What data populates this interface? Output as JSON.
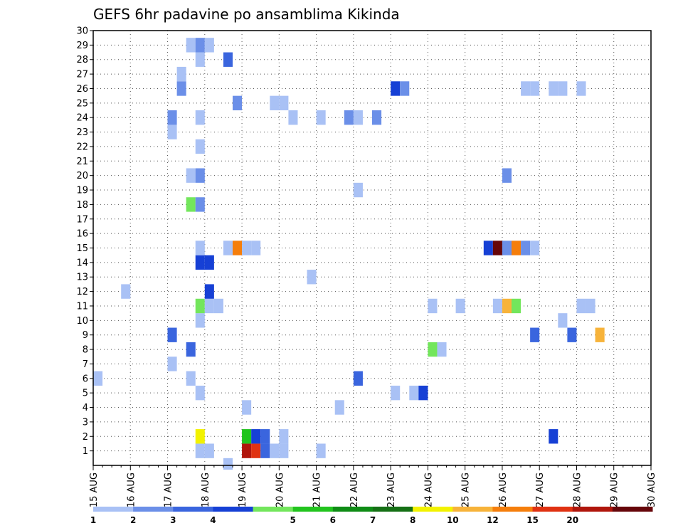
{
  "chart_data": {
    "type": "heatmap",
    "title": "GEFS 6hr padavine po ansamblima Kikinda",
    "xlabel": "",
    "ylabel": "",
    "x_tick_labels": [
      "15 AUG",
      "16 AUG",
      "17 AUG",
      "18 AUG",
      "19 AUG",
      "20 AUG",
      "21 AUG",
      "22 AUG",
      "23 AUG",
      "24 AUG",
      "25 AUG",
      "26 AUG",
      "27 AUG",
      "28 AUG",
      "29 AUG",
      "30 AUG"
    ],
    "y_tick_labels": [
      "1",
      "2",
      "3",
      "4",
      "5",
      "6",
      "7",
      "8",
      "9",
      "10",
      "11",
      "12",
      "13",
      "14",
      "15",
      "16",
      "17",
      "18",
      "19",
      "20",
      "21",
      "22",
      "23",
      "24",
      "25",
      "26",
      "27",
      "28",
      "29",
      "30"
    ],
    "xlim": [
      "15 AUG 00Z",
      "30 AUG 00Z"
    ],
    "ylim": [
      0,
      30
    ],
    "grid": true,
    "x_unit": "6-hour steps from 15 AUG 00Z (4 steps per day)",
    "colorbar": {
      "labels": [
        "1",
        "2",
        "3",
        "4",
        "5",
        "6",
        "7",
        "8",
        "10",
        "12",
        "15",
        "20"
      ],
      "colors": [
        "#a9c1f5",
        "#6b8fe8",
        "#3a65de",
        "#1640d5",
        "#73e65c",
        "#22c41e",
        "#0f8c15",
        "#157015",
        "#f2f200",
        "#f7b33a",
        "#f57e0c",
        "#e03212",
        "#b0160c",
        "#66060a"
      ]
    },
    "cells": [
      {
        "member": 1,
        "step": 11,
        "level": 1
      },
      {
        "member": 1,
        "step": 12,
        "level": 1
      },
      {
        "member": 1,
        "step": 16,
        "level": 13
      },
      {
        "member": 1,
        "step": 17,
        "level": 12
      },
      {
        "member": 1,
        "step": 18,
        "level": 3
      },
      {
        "member": 1,
        "step": 19,
        "level": 1
      },
      {
        "member": 1,
        "step": 20,
        "level": 1
      },
      {
        "member": 1,
        "step": 24,
        "level": 1
      },
      {
        "member": 2,
        "step": 11,
        "level": 9
      },
      {
        "member": 2,
        "step": 16,
        "level": 6
      },
      {
        "member": 2,
        "step": 17,
        "level": 4
      },
      {
        "member": 2,
        "step": 18,
        "level": 3
      },
      {
        "member": 2,
        "step": 20,
        "level": 1
      },
      {
        "member": 2,
        "step": 49,
        "level": 4
      },
      {
        "member": 4,
        "step": 16,
        "level": 1
      },
      {
        "member": 4,
        "step": 26,
        "level": 1
      },
      {
        "member": 5,
        "step": 11,
        "level": 1
      },
      {
        "member": 5,
        "step": 32,
        "level": 1
      },
      {
        "member": 5,
        "step": 34,
        "level": 1
      },
      {
        "member": 5,
        "step": 35,
        "level": 4
      },
      {
        "member": 6,
        "step": 0,
        "level": 1
      },
      {
        "member": 6,
        "step": 10,
        "level": 1
      },
      {
        "member": 6,
        "step": 28,
        "level": 3
      },
      {
        "member": 7,
        "step": 8,
        "level": 1
      },
      {
        "member": 8,
        "step": 10,
        "level": 3
      },
      {
        "member": 8,
        "step": 36,
        "level": 5
      },
      {
        "member": 8,
        "step": 37,
        "level": 1
      },
      {
        "member": 9,
        "step": 8,
        "level": 3
      },
      {
        "member": 9,
        "step": 47,
        "level": 3
      },
      {
        "member": 9,
        "step": 51,
        "level": 3
      },
      {
        "member": 9,
        "step": 54,
        "level": 10
      },
      {
        "member": 10,
        "step": 11,
        "level": 1
      },
      {
        "member": 10,
        "step": 50,
        "level": 1
      },
      {
        "member": 11,
        "step": 11,
        "level": 5
      },
      {
        "member": 11,
        "step": 12,
        "level": 1
      },
      {
        "member": 11,
        "step": 13,
        "level": 1
      },
      {
        "member": 11,
        "step": 36,
        "level": 1
      },
      {
        "member": 11,
        "step": 39,
        "level": 1
      },
      {
        "member": 11,
        "step": 43,
        "level": 1
      },
      {
        "member": 11,
        "step": 44,
        "level": 10
      },
      {
        "member": 11,
        "step": 45,
        "level": 5
      },
      {
        "member": 11,
        "step": 52,
        "level": 1
      },
      {
        "member": 11,
        "step": 53,
        "level": 1
      },
      {
        "member": 12,
        "step": 3,
        "level": 1
      },
      {
        "member": 12,
        "step": 12,
        "level": 4
      },
      {
        "member": 13,
        "step": 23,
        "level": 1
      },
      {
        "member": 14,
        "step": 11,
        "level": 4
      },
      {
        "member": 14,
        "step": 12,
        "level": 4
      },
      {
        "member": 15,
        "step": 11,
        "level": 1
      },
      {
        "member": 15,
        "step": 14,
        "level": 1
      },
      {
        "member": 15,
        "step": 15,
        "level": 11
      },
      {
        "member": 15,
        "step": 16,
        "level": 1
      },
      {
        "member": 15,
        "step": 17,
        "level": 1
      },
      {
        "member": 15,
        "step": 42,
        "level": 4
      },
      {
        "member": 15,
        "step": 43,
        "level": 14
      },
      {
        "member": 15,
        "step": 44,
        "level": 2
      },
      {
        "member": 15,
        "step": 45,
        "level": 11
      },
      {
        "member": 15,
        "step": 46,
        "level": 2
      },
      {
        "member": 15,
        "step": 47,
        "level": 1
      },
      {
        "member": 18,
        "step": 10,
        "level": 5
      },
      {
        "member": 18,
        "step": 11,
        "level": 2
      },
      {
        "member": 19,
        "step": 28,
        "level": 1
      },
      {
        "member": 20,
        "step": 10,
        "level": 1
      },
      {
        "member": 20,
        "step": 11,
        "level": 2
      },
      {
        "member": 20,
        "step": 44,
        "level": 2
      },
      {
        "member": 22,
        "step": 11,
        "level": 1
      },
      {
        "member": 23,
        "step": 8,
        "level": 1
      },
      {
        "member": 24,
        "step": 8,
        "level": 2
      },
      {
        "member": 24,
        "step": 11,
        "level": 1
      },
      {
        "member": 24,
        "step": 21,
        "level": 1
      },
      {
        "member": 24,
        "step": 24,
        "level": 1
      },
      {
        "member": 24,
        "step": 27,
        "level": 2
      },
      {
        "member": 24,
        "step": 28,
        "level": 1
      },
      {
        "member": 24,
        "step": 30,
        "level": 2
      },
      {
        "member": 25,
        "step": 15,
        "level": 2
      },
      {
        "member": 25,
        "step": 19,
        "level": 1
      },
      {
        "member": 25,
        "step": 20,
        "level": 1
      },
      {
        "member": 26,
        "step": 9,
        "level": 2
      },
      {
        "member": 26,
        "step": 32,
        "level": 4
      },
      {
        "member": 26,
        "step": 33,
        "level": 2
      },
      {
        "member": 26,
        "step": 46,
        "level": 1
      },
      {
        "member": 26,
        "step": 47,
        "level": 1
      },
      {
        "member": 26,
        "step": 49,
        "level": 1
      },
      {
        "member": 26,
        "step": 50,
        "level": 1
      },
      {
        "member": 26,
        "step": 52,
        "level": 1
      },
      {
        "member": 27,
        "step": 9,
        "level": 1
      },
      {
        "member": 28,
        "step": 11,
        "level": 1
      },
      {
        "member": 28,
        "step": 14,
        "level": 3
      },
      {
        "member": 29,
        "step": 10,
        "level": 1
      },
      {
        "member": 29,
        "step": 11,
        "level": 2
      },
      {
        "member": 29,
        "step": 12,
        "level": 1
      },
      {
        "member": 0,
        "step": 14,
        "level": 1
      }
    ]
  }
}
